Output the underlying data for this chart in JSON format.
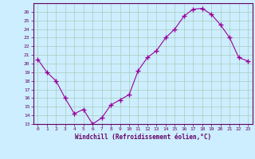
{
  "x": [
    0,
    1,
    2,
    3,
    4,
    5,
    6,
    7,
    8,
    9,
    10,
    11,
    12,
    13,
    14,
    15,
    16,
    17,
    18,
    19,
    20,
    21,
    22,
    23
  ],
  "y": [
    20.5,
    19.0,
    18.0,
    16.0,
    14.2,
    14.7,
    13.0,
    13.7,
    15.2,
    15.8,
    16.4,
    19.2,
    20.7,
    21.5,
    23.0,
    24.0,
    25.5,
    26.3,
    26.4,
    25.7,
    24.5,
    23.0,
    20.7,
    20.3
  ],
  "line_color": "#990099",
  "marker_color": "#990099",
  "bg_color": "#cceeff",
  "grid_color": "#aaccbb",
  "xlabel": "Windchill (Refroidissement éolien,°C)",
  "ylim": [
    13,
    27
  ],
  "xlim": [
    -0.5,
    23.5
  ],
  "yticks": [
    13,
    14,
    15,
    16,
    17,
    18,
    19,
    20,
    21,
    22,
    23,
    24,
    25,
    26
  ],
  "xticks": [
    0,
    1,
    2,
    3,
    4,
    5,
    6,
    7,
    8,
    9,
    10,
    11,
    12,
    13,
    14,
    15,
    16,
    17,
    18,
    19,
    20,
    21,
    22,
    23
  ],
  "axis_color": "#660066",
  "tick_color": "#660066",
  "font_family": "monospace"
}
